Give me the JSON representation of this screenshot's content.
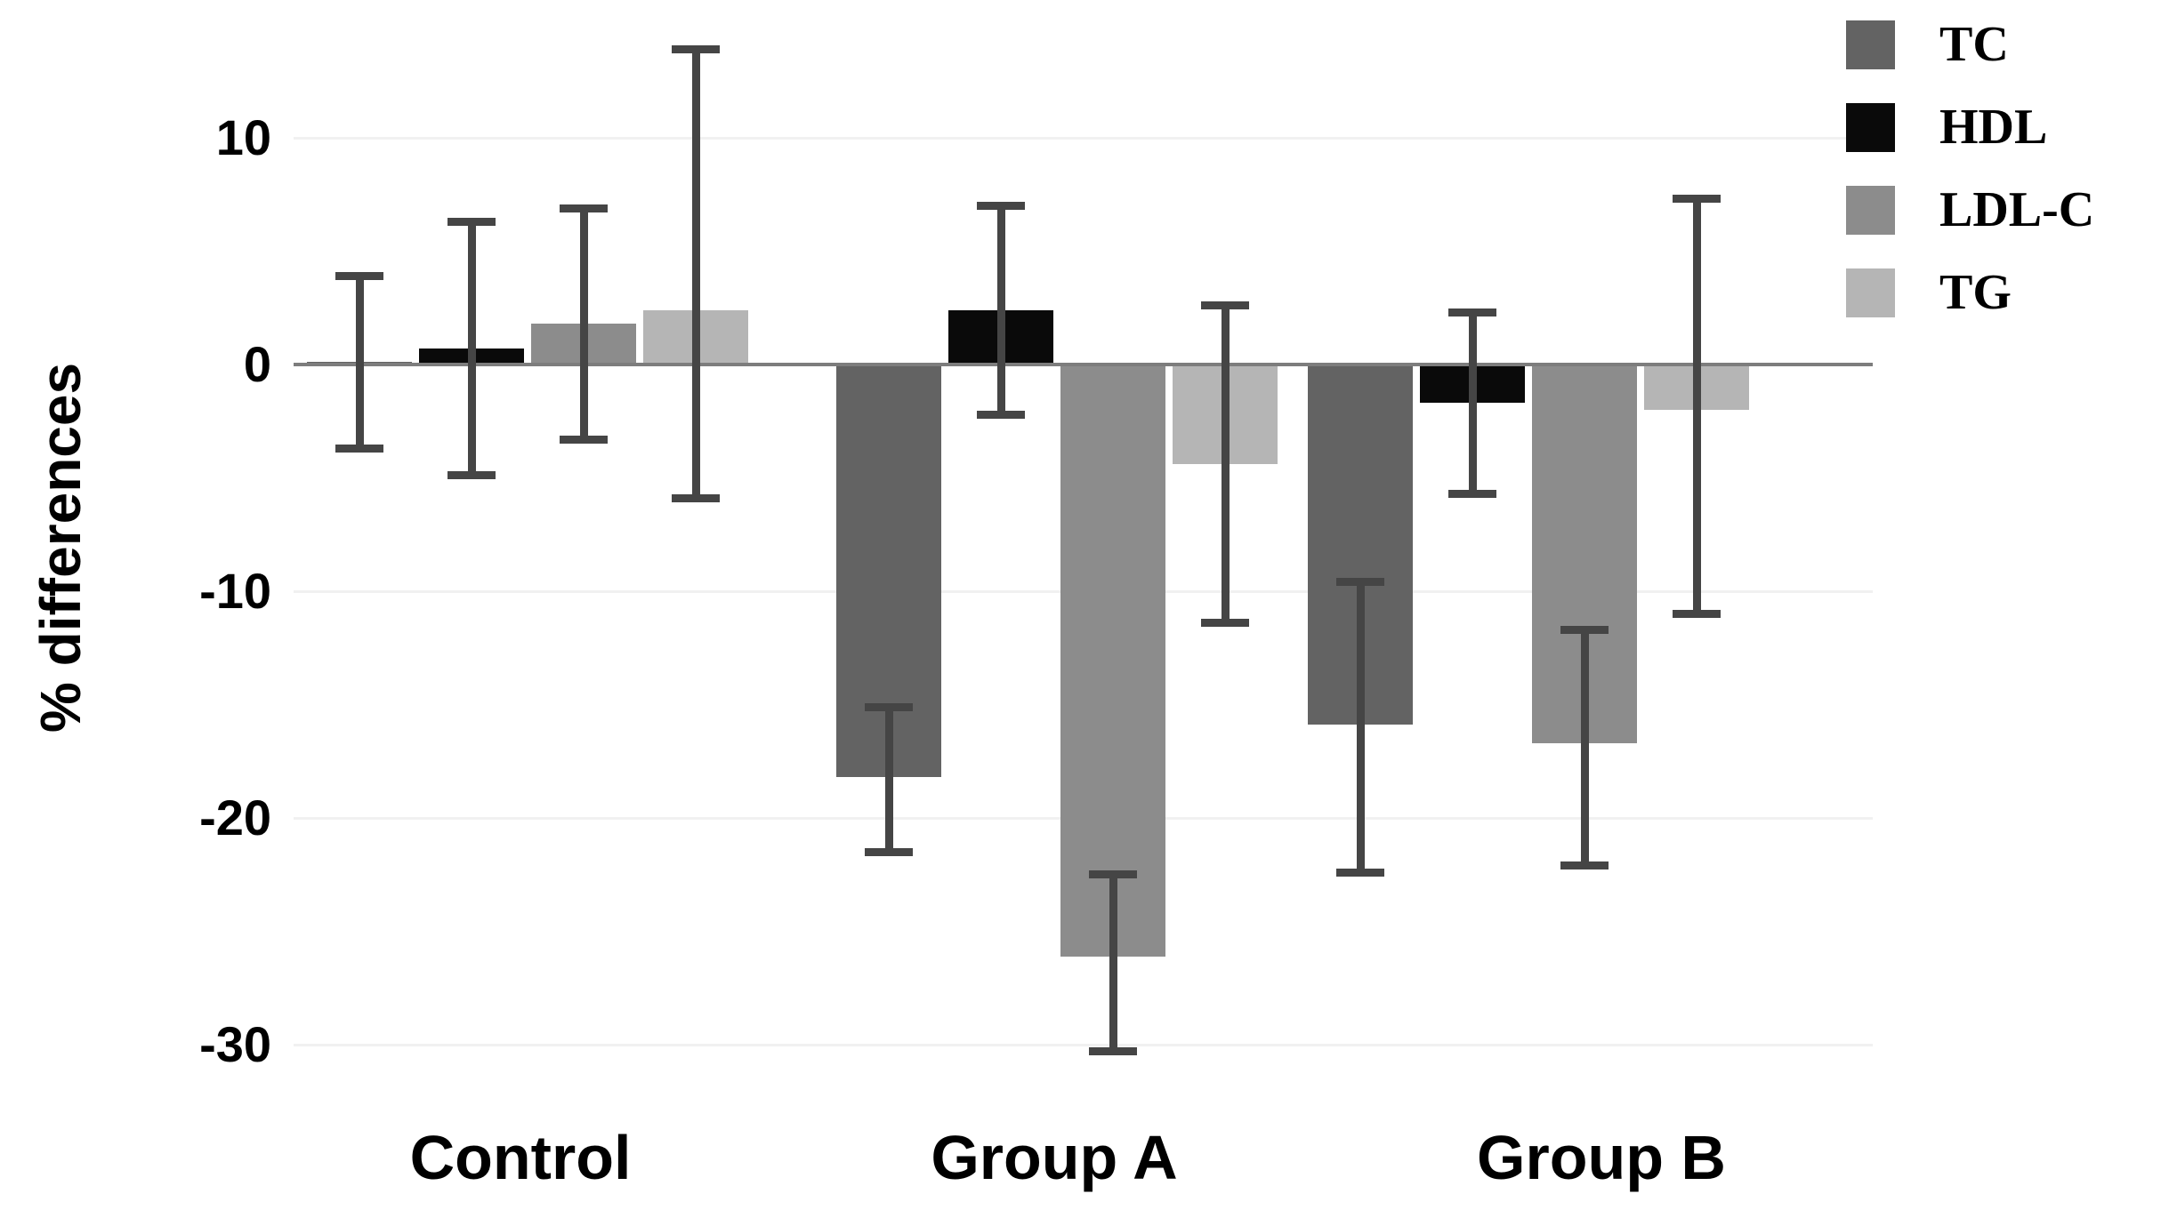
{
  "figure": {
    "background": "#ffffff"
  },
  "chart_data": {
    "type": "bar",
    "title": "",
    "ylabel": "% differences",
    "xlabel": "",
    "categories": [
      "Control",
      "Group A",
      "Group B"
    ],
    "y_ticks": [
      10,
      0,
      -10,
      -20,
      -30
    ],
    "ylim": [
      -32,
      14
    ],
    "grid": true,
    "legend_position": "top-right",
    "series": [
      {
        "name": "TC",
        "color": "#636363",
        "values": [
          0.1,
          -18.2,
          -15.9
        ],
        "error_top": [
          3.9,
          -15.1,
          -9.6
        ],
        "error_bottom": [
          -3.7,
          -21.5,
          -22.4
        ]
      },
      {
        "name": "HDL",
        "color": "#0a0a0a",
        "values": [
          0.7,
          2.4,
          -1.7
        ],
        "error_top": [
          6.3,
          7.0,
          2.3
        ],
        "error_bottom": [
          -4.9,
          -2.2,
          -5.7
        ]
      },
      {
        "name": "LDL-C",
        "color": "#8c8c8c",
        "values": [
          1.8,
          -26.1,
          -16.7
        ],
        "error_top": [
          6.9,
          -22.5,
          -11.7
        ],
        "error_bottom": [
          -3.3,
          -30.3,
          -22.1
        ]
      },
      {
        "name": "TG",
        "color": "#b5b5b5",
        "values": [
          2.4,
          -4.4,
          -2.0
        ],
        "error_top": [
          13.9,
          2.6,
          7.3
        ],
        "error_bottom": [
          -5.9,
          -11.4,
          -11.0
        ]
      }
    ],
    "colors": {
      "error_bar": "#454545",
      "axis_line": "#7d7d7d",
      "gridline": "#f1f1f1",
      "text": "#000000"
    }
  }
}
